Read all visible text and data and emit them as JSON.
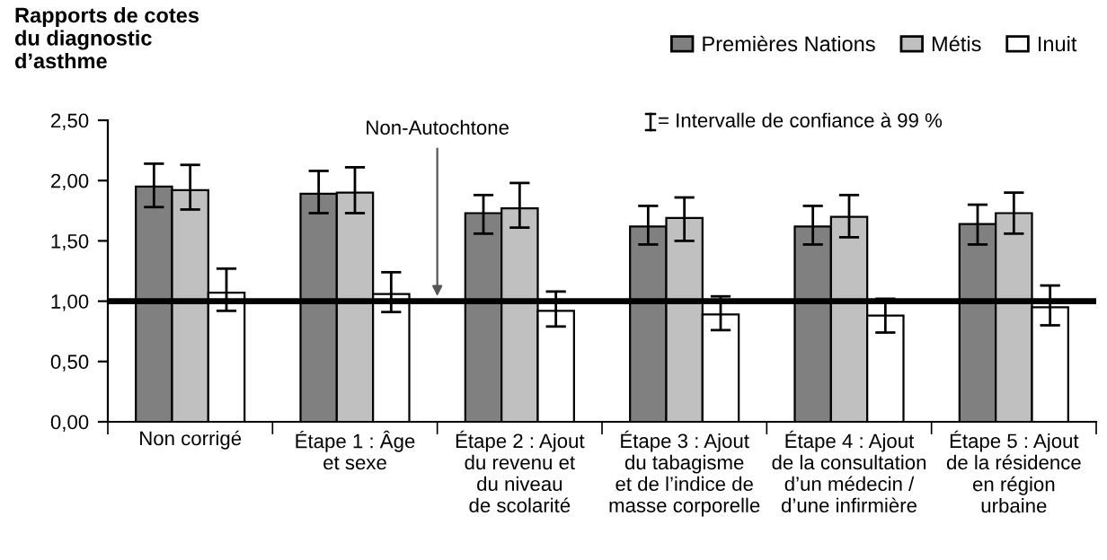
{
  "chart_data": {
    "type": "bar",
    "ylabel": "Rapports de cotes\ndu diagnostic\nd’asthme",
    "categories": [
      "Non corrigé",
      "Étape 1 : Âge\net sexe",
      "Étape 2 : Ajout\ndu revenu et\ndu niveau\nde scolarité",
      "Étape 3 : Ajout\ndu tabagisme\net de l’indice de\nmasse corporelle",
      "Étape 4 : Ajout\nde la consultation\nd’un médecin /\nd’une infirmière",
      "Étape 5 : Ajout\nde la résidence\nen région\nurbaine"
    ],
    "series": [
      {
        "name": "Premières Nations",
        "color": "#808080",
        "values": [
          1.95,
          1.89,
          1.73,
          1.62,
          1.62,
          1.64
        ],
        "errors": [
          [
            1.78,
            2.14
          ],
          [
            1.73,
            2.08
          ],
          [
            1.56,
            1.88
          ],
          [
            1.47,
            1.79
          ],
          [
            1.47,
            1.79
          ],
          [
            1.47,
            1.8
          ]
        ]
      },
      {
        "name": "Métis",
        "color": "#c0c0c0",
        "values": [
          1.92,
          1.9,
          1.77,
          1.69,
          1.7,
          1.73
        ],
        "errors": [
          [
            1.76,
            2.13
          ],
          [
            1.73,
            2.11
          ],
          [
            1.61,
            1.98
          ],
          [
            1.5,
            1.86
          ],
          [
            1.53,
            1.88
          ],
          [
            1.56,
            1.9
          ]
        ]
      },
      {
        "name": "Inuit",
        "color": "#ffffff",
        "values": [
          1.07,
          1.06,
          0.92,
          0.89,
          0.88,
          0.95
        ],
        "errors": [
          [
            0.92,
            1.27
          ],
          [
            0.91,
            1.24
          ],
          [
            0.79,
            1.08
          ],
          [
            0.76,
            1.04
          ],
          [
            0.74,
            1.02
          ],
          [
            0.8,
            1.13
          ]
        ]
      }
    ],
    "ylim": [
      0,
      2.5
    ],
    "yticks": [
      {
        "value": 0,
        "label": "0,00"
      },
      {
        "value": 0.5,
        "label": "0,50"
      },
      {
        "value": 1,
        "label": "1,00"
      },
      {
        "value": 1.5,
        "label": "1,50"
      },
      {
        "value": 2,
        "label": "2,00"
      },
      {
        "value": 2.5,
        "label": "2,50"
      }
    ],
    "ref_lines": [
      {
        "axis": "y",
        "value": 1,
        "label": "Non-Autochtone",
        "color": "#000000"
      }
    ],
    "annotations": [
      "= Intervalle de confiance à 99 %"
    ],
    "grid": false,
    "legend": "top right"
  }
}
